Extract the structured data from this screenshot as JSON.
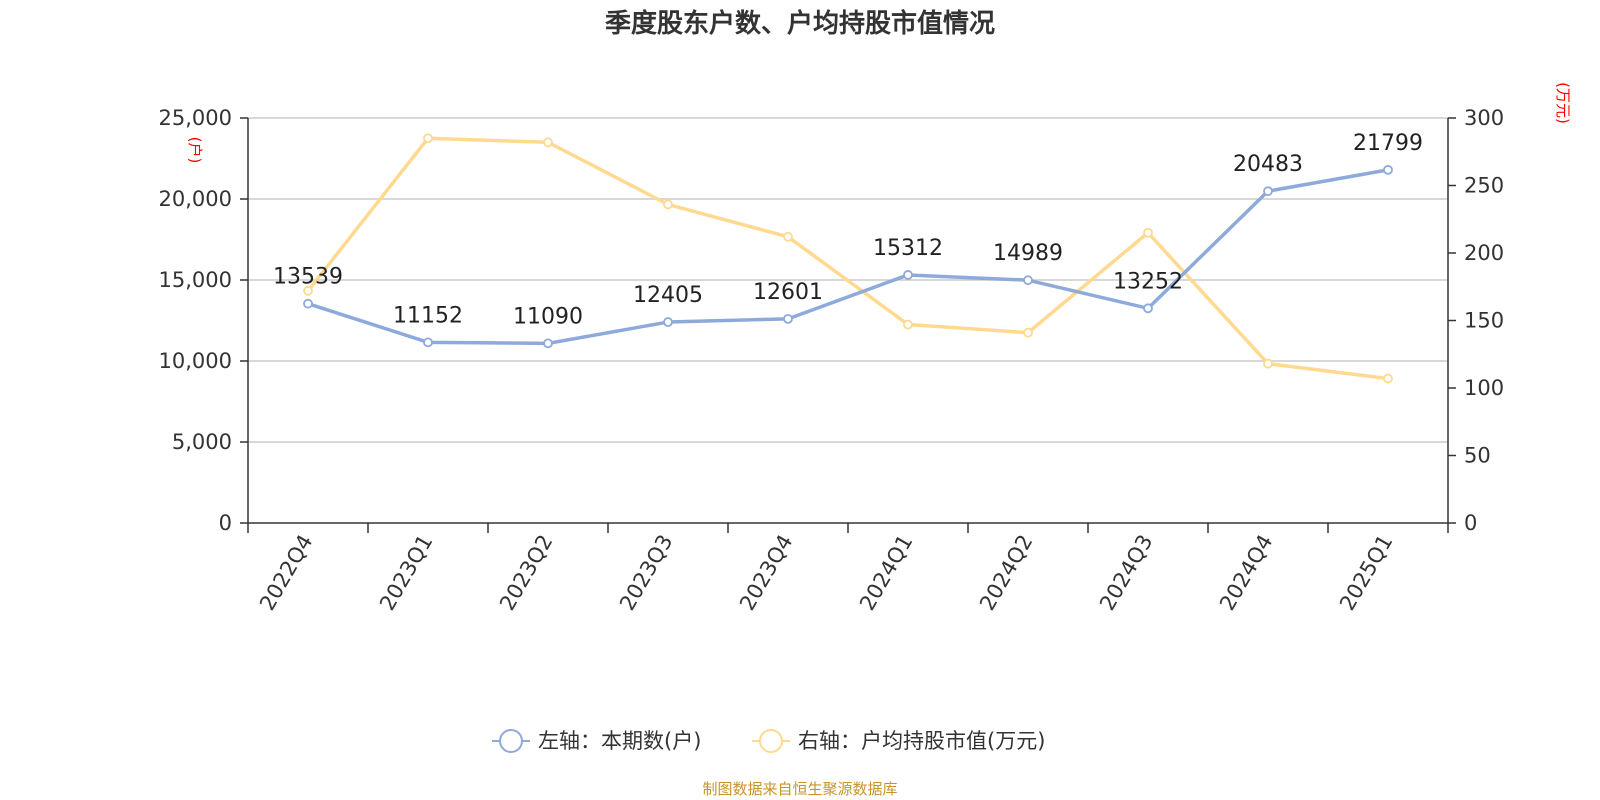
{
  "title": "季度股东户数、户均持股市值情况",
  "footer": "制图数据来自恒生聚源数据库",
  "colors": {
    "left_series": "#8eaadb",
    "right_series": "#ffd990",
    "unit": "#ff0000",
    "footer": "#c8942a",
    "grid": "#cccccc",
    "axis": "#333333"
  },
  "chart_data": {
    "type": "line",
    "categories": [
      "2022Q4",
      "2023Q1",
      "2023Q2",
      "2023Q3",
      "2023Q4",
      "2024Q1",
      "2024Q2",
      "2024Q3",
      "2024Q4",
      "2025Q1"
    ],
    "left_axis": {
      "unit": "(户)",
      "ylim": [
        0,
        25000
      ],
      "ticks": [
        0,
        5000,
        10000,
        15000,
        20000,
        25000
      ],
      "tick_labels": [
        "0",
        "5,000",
        "10,000",
        "15,000",
        "20,000",
        "25,000"
      ]
    },
    "right_axis": {
      "unit": "(万元)",
      "ylim": [
        0,
        300
      ],
      "ticks": [
        0,
        50,
        100,
        150,
        200,
        250,
        300
      ],
      "tick_labels": [
        "0",
        "50",
        "100",
        "150",
        "200",
        "250",
        "300"
      ]
    },
    "series": [
      {
        "name": "左轴：本期数(户)",
        "axis": "left",
        "color": "#8eaadb",
        "values": [
          13539,
          11152,
          11090,
          12405,
          12601,
          15312,
          14989,
          13252,
          20483,
          21799
        ],
        "labels": [
          "13539",
          "11152",
          "11090",
          "12405",
          "12601",
          "15312",
          "14989",
          "13252",
          "20483",
          "21799"
        ]
      },
      {
        "name": "右轴：户均持股市值(万元)",
        "axis": "right",
        "color": "#ffd990",
        "values": [
          172,
          285,
          282,
          236,
          212,
          147,
          141,
          215,
          118,
          107
        ]
      }
    ],
    "grid": true,
    "legend": "bottom-center"
  }
}
